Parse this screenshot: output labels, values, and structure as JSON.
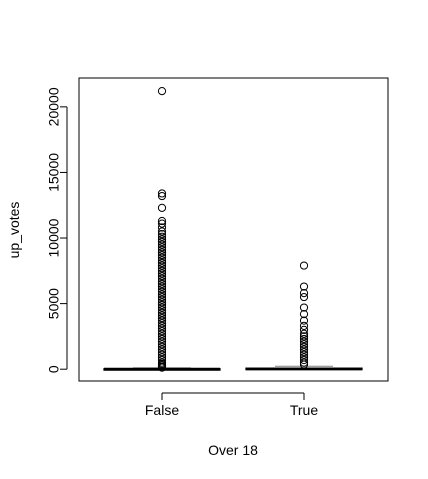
{
  "chart_data": {
    "type": "boxplot",
    "xlabel": "Over 18",
    "ylabel": "up_votes",
    "categories": [
      "False",
      "True"
    ],
    "y_ticks": [
      0,
      5000,
      10000,
      15000,
      20000
    ],
    "ylim": [
      -900,
      22200
    ],
    "grid": false,
    "colors": {
      "axis": "#000000",
      "box": "#000000",
      "points": "#000000",
      "whisker": "#808080"
    },
    "boxes": [
      {
        "name": "False",
        "min": 0,
        "q1": 0,
        "median": 10,
        "q3": 40,
        "max": 100,
        "outliers": [
          120,
          200,
          300,
          400,
          500,
          700,
          900,
          1100,
          1300,
          1500,
          1700,
          1900,
          2100,
          2300,
          2500,
          2700,
          2900,
          3100,
          3300,
          3500,
          3700,
          3900,
          4100,
          4300,
          4500,
          4700,
          4900,
          5100,
          5300,
          5500,
          5700,
          5900,
          6100,
          6300,
          6500,
          6700,
          6900,
          7100,
          7300,
          7500,
          7700,
          7900,
          8100,
          8300,
          8500,
          8700,
          8900,
          9100,
          9300,
          9500,
          9700,
          9900,
          10100,
          10300,
          10500,
          10800,
          11100,
          11300,
          12300,
          13200,
          13400,
          21200
        ]
      },
      {
        "name": "True",
        "min": 0,
        "q1": 0,
        "median": 15,
        "q3": 80,
        "max": 220,
        "outliers": [
          350,
          500,
          700,
          900,
          1100,
          1300,
          1500,
          1700,
          1900,
          2100,
          2300,
          2500,
          2700,
          3000,
          3300,
          3700,
          4200,
          4700,
          5500,
          5800,
          6300,
          7900
        ]
      }
    ]
  }
}
